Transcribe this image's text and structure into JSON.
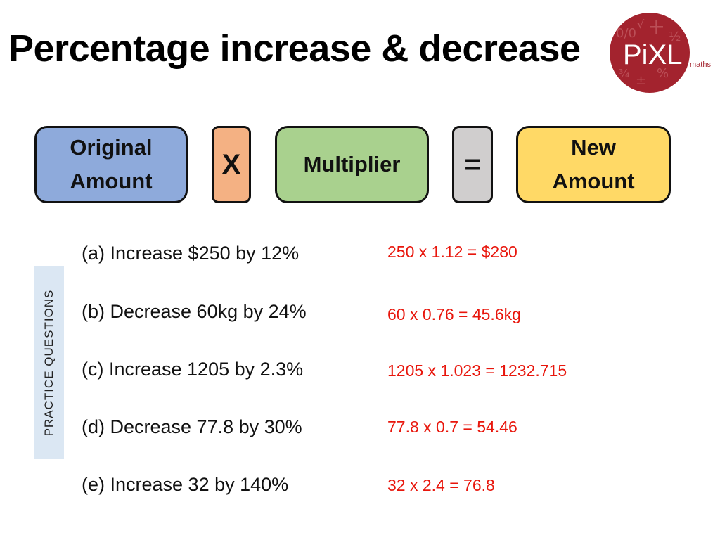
{
  "title": "Percentage increase & decrease",
  "logo": {
    "brand": "PiXL",
    "sub": "maths",
    "color": "#a3232e"
  },
  "formula": {
    "original": [
      "Original",
      "Amount"
    ],
    "times": "X",
    "multiplier": "Multiplier",
    "equals": "=",
    "new": [
      "New",
      "Amount"
    ]
  },
  "side_label": "PRACTICE QUESTIONS",
  "questions": [
    {
      "label": "(a) Increase $250 by 12%",
      "answer": "250 x 1.12 = $280"
    },
    {
      "label": "(b) Decrease 60kg by 24%",
      "answer": "60 x 0.76 = 45.6kg"
    },
    {
      "label": "(c) Increase 1205 by 2.3%",
      "answer": "1205 x 1.023 = 1232.715"
    },
    {
      "label": "(d) Decrease 77.8 by 30%",
      "answer": "77.8 x 0.7 = 54.46"
    },
    {
      "label": "(e) Increase 32 by 140%",
      "answer": "32 x 2.4 = 76.8"
    }
  ],
  "colors": {
    "original": "#8eaadb",
    "times": "#f4b183",
    "multiplier": "#a9d18e",
    "equals": "#d0cece",
    "new": "#ffd966",
    "answer": "#e8160c"
  }
}
